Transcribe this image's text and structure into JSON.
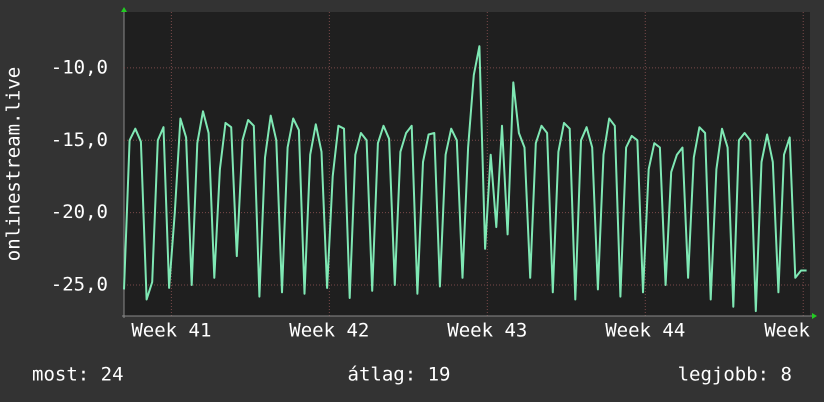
{
  "chart_data": {
    "type": "line",
    "y_label": "onlinestream.live",
    "x": [
      0,
      0.25,
      0.5,
      0.75,
      1,
      1.25,
      1.5,
      1.75,
      2,
      2.25,
      2.5,
      2.75,
      3,
      3.25,
      3.5,
      3.75,
      4,
      4.25,
      4.5,
      4.75,
      5,
      5.25,
      5.5,
      5.75,
      6,
      6.25,
      6.5,
      6.75,
      7,
      7.25,
      7.5,
      7.75,
      8,
      8.25,
      8.5,
      8.75,
      9,
      9.25,
      9.5,
      9.75,
      10,
      10.25,
      10.5,
      10.75,
      11,
      11.25,
      11.5,
      11.75,
      12,
      12.25,
      12.5,
      12.75,
      13,
      13.25,
      13.5,
      13.75,
      14,
      14.25,
      14.5,
      14.75,
      15,
      15.25,
      15.5,
      15.75,
      16,
      16.25,
      16.5,
      16.75,
      17,
      17.25,
      17.5,
      17.75,
      18,
      18.25,
      18.5,
      18.75,
      19,
      19.25,
      19.5,
      19.75,
      20,
      20.25,
      20.5,
      20.75,
      21,
      21.25,
      21.5,
      21.75,
      22,
      22.25,
      22.5,
      22.75,
      23,
      23.25,
      23.5,
      23.75,
      24,
      24.25,
      24.5,
      24.75,
      25,
      25.25,
      25.5,
      25.75,
      26,
      26.25,
      26.5,
      26.75,
      27,
      27.25,
      27.5,
      27.75,
      28,
      28.25,
      28.5,
      28.75,
      29,
      29.25,
      29.5,
      29.75,
      30,
      30.25
    ],
    "series": [
      {
        "color": "#7fe8b4",
        "values": [
          -25.3,
          -15.0,
          -14.2,
          -15.1,
          -26.0,
          -24.8,
          -15.0,
          -14.1,
          -25.2,
          -20.0,
          -13.5,
          -14.8,
          -25.0,
          -15.2,
          -13.0,
          -14.5,
          -24.5,
          -17.0,
          -13.8,
          -14.1,
          -23.0,
          -15.0,
          -13.6,
          -14.0,
          -25.8,
          -16.2,
          -13.3,
          -15.0,
          -25.5,
          -15.5,
          -13.5,
          -14.3,
          -25.6,
          -16.0,
          -13.9,
          -15.8,
          -25.2,
          -17.5,
          -14.0,
          -14.2,
          -25.9,
          -16.0,
          -14.5,
          -15.0,
          -25.4,
          -15.2,
          -14.0,
          -14.9,
          -25.0,
          -15.8,
          -14.5,
          -14.0,
          -25.6,
          -16.5,
          -14.6,
          -14.5,
          -25.1,
          -16.0,
          -14.2,
          -15.0,
          -24.5,
          -15.5,
          -10.5,
          -8.5,
          -22.5,
          -16.0,
          -21.0,
          -14.0,
          -21.5,
          -11.0,
          -14.5,
          -15.5,
          -24.5,
          -15.2,
          -14.0,
          -14.5,
          -25.5,
          -15.8,
          -13.8,
          -14.2,
          -26.0,
          -15.0,
          -14.1,
          -15.5,
          -25.3,
          -16.0,
          -13.5,
          -14.0,
          -25.8,
          -15.5,
          -14.7,
          -15.0,
          -25.5,
          -17.0,
          -15.2,
          -15.5,
          -25.0,
          -17.2,
          -16.0,
          -15.5,
          -24.5,
          -16.2,
          -14.1,
          -14.5,
          -26.0,
          -17.0,
          -14.2,
          -15.5,
          -26.5,
          -15.0,
          -14.5,
          -15.0,
          -26.8,
          -16.5,
          -14.6,
          -16.5,
          -25.5,
          -16.0,
          -14.8,
          -24.5,
          -24.0,
          -24.0
        ]
      }
    ],
    "xlim": [
      0,
      30.4
    ],
    "xticks": [
      {
        "value": 2.1,
        "label": "Week 41"
      },
      {
        "value": 9.1,
        "label": "Week 42"
      },
      {
        "value": 16.1,
        "label": "Week 43"
      },
      {
        "value": 23.1,
        "label": "Week 44"
      },
      {
        "value": 30.1,
        "label": "Week"
      }
    ],
    "ylim": [
      -27.14,
      -6.14
    ],
    "yticks": [
      {
        "value": -25,
        "label": "-25,0"
      },
      {
        "value": -20,
        "label": "-20,0"
      },
      {
        "value": -15,
        "label": "-15,0"
      },
      {
        "value": -10,
        "label": "-10,0"
      }
    ],
    "grid": true,
    "legend": {
      "current": "most: 24",
      "average": "átlag: 19",
      "best": "legjobb: 8"
    }
  }
}
